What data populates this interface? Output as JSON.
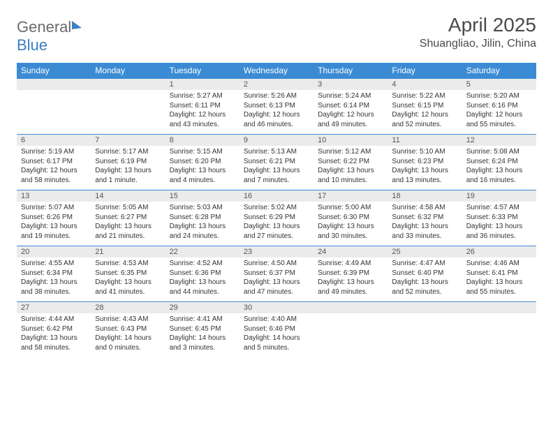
{
  "logo": {
    "text1": "General",
    "text2": "Blue"
  },
  "title": "April 2025",
  "location": "Shuangliao, Jilin, China",
  "days_of_week": [
    "Sunday",
    "Monday",
    "Tuesday",
    "Wednesday",
    "Thursday",
    "Friday",
    "Saturday"
  ],
  "colors": {
    "header_bg": "#3b8bd4",
    "header_text": "#ffffff",
    "day_header_bg": "#ebebeb",
    "day_border": "#3b8bd4",
    "logo_gray": "#6b6b6b",
    "logo_blue": "#3b7fc4",
    "text": "#333333"
  },
  "blank_leading": 2,
  "cells": [
    {
      "n": "1",
      "sr": "5:27 AM",
      "ss": "6:11 PM",
      "dl": "12 hours and 43 minutes."
    },
    {
      "n": "2",
      "sr": "5:26 AM",
      "ss": "6:13 PM",
      "dl": "12 hours and 46 minutes."
    },
    {
      "n": "3",
      "sr": "5:24 AM",
      "ss": "6:14 PM",
      "dl": "12 hours and 49 minutes."
    },
    {
      "n": "4",
      "sr": "5:22 AM",
      "ss": "6:15 PM",
      "dl": "12 hours and 52 minutes."
    },
    {
      "n": "5",
      "sr": "5:20 AM",
      "ss": "6:16 PM",
      "dl": "12 hours and 55 minutes."
    },
    {
      "n": "6",
      "sr": "5:19 AM",
      "ss": "6:17 PM",
      "dl": "12 hours and 58 minutes."
    },
    {
      "n": "7",
      "sr": "5:17 AM",
      "ss": "6:19 PM",
      "dl": "13 hours and 1 minute."
    },
    {
      "n": "8",
      "sr": "5:15 AM",
      "ss": "6:20 PM",
      "dl": "13 hours and 4 minutes."
    },
    {
      "n": "9",
      "sr": "5:13 AM",
      "ss": "6:21 PM",
      "dl": "13 hours and 7 minutes."
    },
    {
      "n": "10",
      "sr": "5:12 AM",
      "ss": "6:22 PM",
      "dl": "13 hours and 10 minutes."
    },
    {
      "n": "11",
      "sr": "5:10 AM",
      "ss": "6:23 PM",
      "dl": "13 hours and 13 minutes."
    },
    {
      "n": "12",
      "sr": "5:08 AM",
      "ss": "6:24 PM",
      "dl": "13 hours and 16 minutes."
    },
    {
      "n": "13",
      "sr": "5:07 AM",
      "ss": "6:26 PM",
      "dl": "13 hours and 19 minutes."
    },
    {
      "n": "14",
      "sr": "5:05 AM",
      "ss": "6:27 PM",
      "dl": "13 hours and 21 minutes."
    },
    {
      "n": "15",
      "sr": "5:03 AM",
      "ss": "6:28 PM",
      "dl": "13 hours and 24 minutes."
    },
    {
      "n": "16",
      "sr": "5:02 AM",
      "ss": "6:29 PM",
      "dl": "13 hours and 27 minutes."
    },
    {
      "n": "17",
      "sr": "5:00 AM",
      "ss": "6:30 PM",
      "dl": "13 hours and 30 minutes."
    },
    {
      "n": "18",
      "sr": "4:58 AM",
      "ss": "6:32 PM",
      "dl": "13 hours and 33 minutes."
    },
    {
      "n": "19",
      "sr": "4:57 AM",
      "ss": "6:33 PM",
      "dl": "13 hours and 36 minutes."
    },
    {
      "n": "20",
      "sr": "4:55 AM",
      "ss": "6:34 PM",
      "dl": "13 hours and 38 minutes."
    },
    {
      "n": "21",
      "sr": "4:53 AM",
      "ss": "6:35 PM",
      "dl": "13 hours and 41 minutes."
    },
    {
      "n": "22",
      "sr": "4:52 AM",
      "ss": "6:36 PM",
      "dl": "13 hours and 44 minutes."
    },
    {
      "n": "23",
      "sr": "4:50 AM",
      "ss": "6:37 PM",
      "dl": "13 hours and 47 minutes."
    },
    {
      "n": "24",
      "sr": "4:49 AM",
      "ss": "6:39 PM",
      "dl": "13 hours and 49 minutes."
    },
    {
      "n": "25",
      "sr": "4:47 AM",
      "ss": "6:40 PM",
      "dl": "13 hours and 52 minutes."
    },
    {
      "n": "26",
      "sr": "4:46 AM",
      "ss": "6:41 PM",
      "dl": "13 hours and 55 minutes."
    },
    {
      "n": "27",
      "sr": "4:44 AM",
      "ss": "6:42 PM",
      "dl": "13 hours and 58 minutes."
    },
    {
      "n": "28",
      "sr": "4:43 AM",
      "ss": "6:43 PM",
      "dl": "14 hours and 0 minutes."
    },
    {
      "n": "29",
      "sr": "4:41 AM",
      "ss": "6:45 PM",
      "dl": "14 hours and 3 minutes."
    },
    {
      "n": "30",
      "sr": "4:40 AM",
      "ss": "6:46 PM",
      "dl": "14 hours and 5 minutes."
    }
  ],
  "labels": {
    "sunrise": "Sunrise: ",
    "sunset": "Sunset: ",
    "daylight": "Daylight: "
  }
}
